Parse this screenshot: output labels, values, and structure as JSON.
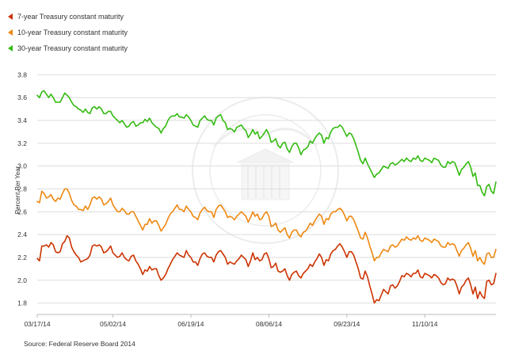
{
  "chart_data": {
    "type": "line",
    "title": "",
    "xlabel": "",
    "ylabel": "Percent Per Year",
    "source": "Source: Federal Reserve Board 2014",
    "ylim": [
      1.7,
      3.9
    ],
    "yticks": [
      "3.8",
      "3.6",
      "3.4",
      "3.2",
      "3.0",
      "2.8",
      "2.6",
      "2.4",
      "2.2",
      "2.0",
      "1.8"
    ],
    "yticks_values": [
      3.8,
      3.6,
      3.4,
      3.2,
      3.0,
      2.8,
      2.6,
      2.4,
      2.2,
      2.0,
      1.8
    ],
    "xticks": [
      "03/17/14",
      "05/02/14",
      "06/19/14",
      "08/06/14",
      "09/23/14",
      "11/10/14"
    ],
    "xticks_index": [
      0,
      33,
      67,
      101,
      135,
      169
    ],
    "grid": true,
    "legend_position": "top-left",
    "series": [
      {
        "name": "7-year Treasury constant maturity",
        "color": "#cc3300",
        "values": [
          2.19,
          2.17,
          2.3,
          2.3,
          2.31,
          2.29,
          2.33,
          2.31,
          2.25,
          2.24,
          2.25,
          2.32,
          2.34,
          2.39,
          2.37,
          2.29,
          2.25,
          2.22,
          2.2,
          2.16,
          2.17,
          2.18,
          2.19,
          2.22,
          2.3,
          2.31,
          2.3,
          2.31,
          2.29,
          2.24,
          2.25,
          2.27,
          2.3,
          2.24,
          2.22,
          2.2,
          2.21,
          2.24,
          2.2,
          2.18,
          2.17,
          2.21,
          2.22,
          2.17,
          2.14,
          2.1,
          2.05,
          2.09,
          2.08,
          2.12,
          2.09,
          2.1,
          2.1,
          2.04,
          2.0,
          2.02,
          2.05,
          2.1,
          2.14,
          2.18,
          2.21,
          2.24,
          2.22,
          2.21,
          2.2,
          2.26,
          2.22,
          2.2,
          2.16,
          2.16,
          2.13,
          2.19,
          2.23,
          2.24,
          2.21,
          2.2,
          2.2,
          2.16,
          2.22,
          2.25,
          2.26,
          2.23,
          2.2,
          2.14,
          2.16,
          2.15,
          2.14,
          2.17,
          2.19,
          2.22,
          2.2,
          2.18,
          2.12,
          2.17,
          2.24,
          2.18,
          2.2,
          2.17,
          2.18,
          2.23,
          2.24,
          2.19,
          2.11,
          2.12,
          2.15,
          2.08,
          2.07,
          2.08,
          2.1,
          2.04,
          2.0,
          2.05,
          2.07,
          2.08,
          2.04,
          2.02,
          2.06,
          2.08,
          2.1,
          2.14,
          2.12,
          2.16,
          2.19,
          2.23,
          2.2,
          2.13,
          2.18,
          2.17,
          2.23,
          2.26,
          2.27,
          2.3,
          2.32,
          2.29,
          2.25,
          2.2,
          2.25,
          2.25,
          2.22,
          2.16,
          2.1,
          2.02,
          2.01,
          2.08,
          2.03,
          1.95,
          1.88,
          1.8,
          1.83,
          1.82,
          1.87,
          1.92,
          1.9,
          1.88,
          1.95,
          1.96,
          1.93,
          1.95,
          1.99,
          2.04,
          2.03,
          2.06,
          2.05,
          2.03,
          2.06,
          2.06,
          2.09,
          2.03,
          2.02,
          2.06,
          2.05,
          2.04,
          2.02,
          2.05,
          2.04,
          2.02,
          1.98,
          1.96,
          1.97,
          2.02,
          2.0,
          2.01,
          2.0,
          1.95,
          1.88,
          1.94,
          1.96,
          2.0,
          2.02,
          1.96,
          1.88,
          1.94,
          1.84,
          1.9,
          1.86,
          1.84,
          1.99,
          2.0,
          1.96,
          1.97,
          2.06
        ]
      },
      {
        "name": "10-year Treasury constant maturity",
        "color": "#ee8811",
        "values": [
          2.69,
          2.68,
          2.78,
          2.76,
          2.72,
          2.73,
          2.75,
          2.71,
          2.69,
          2.72,
          2.71,
          2.76,
          2.8,
          2.8,
          2.76,
          2.7,
          2.66,
          2.65,
          2.62,
          2.62,
          2.61,
          2.65,
          2.62,
          2.66,
          2.72,
          2.73,
          2.71,
          2.73,
          2.71,
          2.66,
          2.67,
          2.69,
          2.72,
          2.66,
          2.63,
          2.6,
          2.6,
          2.63,
          2.61,
          2.58,
          2.58,
          2.6,
          2.6,
          2.56,
          2.52,
          2.48,
          2.44,
          2.49,
          2.49,
          2.54,
          2.5,
          2.52,
          2.52,
          2.48,
          2.43,
          2.46,
          2.49,
          2.54,
          2.58,
          2.6,
          2.63,
          2.66,
          2.62,
          2.62,
          2.6,
          2.65,
          2.62,
          2.6,
          2.56,
          2.55,
          2.53,
          2.59,
          2.62,
          2.64,
          2.61,
          2.6,
          2.6,
          2.55,
          2.62,
          2.65,
          2.66,
          2.63,
          2.6,
          2.55,
          2.56,
          2.55,
          2.53,
          2.56,
          2.58,
          2.6,
          2.58,
          2.56,
          2.51,
          2.55,
          2.6,
          2.56,
          2.58,
          2.53,
          2.54,
          2.58,
          2.6,
          2.56,
          2.47,
          2.48,
          2.5,
          2.44,
          2.42,
          2.44,
          2.46,
          2.4,
          2.37,
          2.42,
          2.44,
          2.44,
          2.4,
          2.38,
          2.42,
          2.43,
          2.46,
          2.5,
          2.48,
          2.52,
          2.55,
          2.58,
          2.56,
          2.49,
          2.54,
          2.53,
          2.58,
          2.6,
          2.6,
          2.62,
          2.63,
          2.61,
          2.57,
          2.52,
          2.56,
          2.56,
          2.53,
          2.48,
          2.43,
          2.37,
          2.36,
          2.42,
          2.37,
          2.3,
          2.24,
          2.17,
          2.2,
          2.2,
          2.24,
          2.27,
          2.26,
          2.25,
          2.3,
          2.31,
          2.29,
          2.3,
          2.33,
          2.36,
          2.35,
          2.38,
          2.36,
          2.35,
          2.37,
          2.36,
          2.39,
          2.35,
          2.34,
          2.37,
          2.36,
          2.35,
          2.33,
          2.36,
          2.35,
          2.34,
          2.3,
          2.29,
          2.29,
          2.33,
          2.31,
          2.32,
          2.31,
          2.26,
          2.21,
          2.26,
          2.28,
          2.31,
          2.33,
          2.28,
          2.21,
          2.26,
          2.17,
          2.2,
          2.16,
          2.14,
          2.23,
          2.24,
          2.2,
          2.2,
          2.27
        ]
      },
      {
        "name": "30-year Treasury constant maturity",
        "color": "#33bb11",
        "values": [
          3.62,
          3.6,
          3.65,
          3.66,
          3.63,
          3.6,
          3.63,
          3.6,
          3.56,
          3.56,
          3.56,
          3.6,
          3.64,
          3.62,
          3.6,
          3.56,
          3.53,
          3.52,
          3.5,
          3.49,
          3.47,
          3.5,
          3.47,
          3.46,
          3.51,
          3.52,
          3.5,
          3.52,
          3.5,
          3.46,
          3.46,
          3.48,
          3.48,
          3.44,
          3.42,
          3.4,
          3.38,
          3.4,
          3.37,
          3.34,
          3.35,
          3.38,
          3.39,
          3.35,
          3.36,
          3.38,
          3.38,
          3.41,
          3.39,
          3.42,
          3.38,
          3.36,
          3.34,
          3.33,
          3.29,
          3.33,
          3.35,
          3.4,
          3.43,
          3.44,
          3.44,
          3.46,
          3.43,
          3.43,
          3.42,
          3.45,
          3.43,
          3.4,
          3.36,
          3.35,
          3.34,
          3.4,
          3.42,
          3.44,
          3.41,
          3.4,
          3.4,
          3.36,
          3.42,
          3.44,
          3.45,
          3.4,
          3.38,
          3.32,
          3.33,
          3.32,
          3.3,
          3.34,
          3.35,
          3.36,
          3.33,
          3.31,
          3.25,
          3.28,
          3.32,
          3.28,
          3.3,
          3.24,
          3.26,
          3.29,
          3.32,
          3.28,
          3.21,
          3.22,
          3.24,
          3.18,
          3.16,
          3.2,
          3.21,
          3.15,
          3.12,
          3.17,
          3.2,
          3.2,
          3.16,
          3.1,
          3.14,
          3.15,
          3.17,
          3.22,
          3.2,
          3.24,
          3.27,
          3.29,
          3.27,
          3.2,
          3.25,
          3.24,
          3.3,
          3.33,
          3.34,
          3.34,
          3.36,
          3.34,
          3.3,
          3.26,
          3.29,
          3.28,
          3.24,
          3.18,
          3.12,
          3.05,
          3.02,
          3.07,
          3.02,
          2.98,
          2.94,
          2.9,
          2.93,
          2.94,
          2.97,
          3.0,
          2.99,
          2.98,
          3.02,
          3.03,
          3.01,
          3.02,
          3.04,
          3.06,
          3.04,
          3.07,
          3.05,
          3.04,
          3.07,
          3.06,
          3.09,
          3.05,
          3.04,
          3.07,
          3.06,
          3.05,
          3.03,
          3.07,
          3.06,
          3.05,
          3.01,
          2.99,
          2.99,
          3.04,
          3.02,
          3.04,
          3.03,
          2.98,
          2.92,
          2.97,
          2.99,
          3.02,
          3.04,
          2.99,
          2.91,
          2.94,
          2.83,
          2.83,
          2.77,
          2.74,
          2.82,
          2.84,
          2.78,
          2.76,
          2.86
        ]
      }
    ]
  }
}
